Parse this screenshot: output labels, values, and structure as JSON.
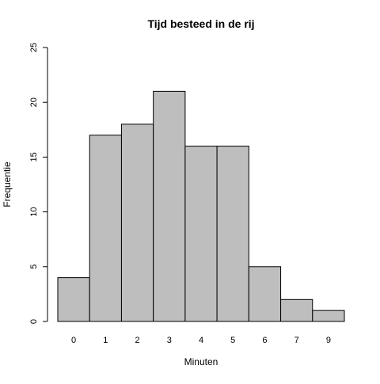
{
  "chart_data": {
    "type": "bar",
    "title": "Tijd besteed in de rij",
    "xlabel": "Minuten",
    "ylabel": "Frequentie",
    "categories": [
      "0",
      "1",
      "2",
      "3",
      "4",
      "5",
      "6",
      "7",
      "9"
    ],
    "values": [
      4,
      17,
      18,
      21,
      16,
      16,
      5,
      2,
      1
    ],
    "ylim": [
      0,
      25
    ],
    "yticks": [
      "0",
      "5",
      "10",
      "15",
      "20",
      "25"
    ],
    "grid": false,
    "bar_color": "#bebebe",
    "bar_border_color": "#000000"
  }
}
